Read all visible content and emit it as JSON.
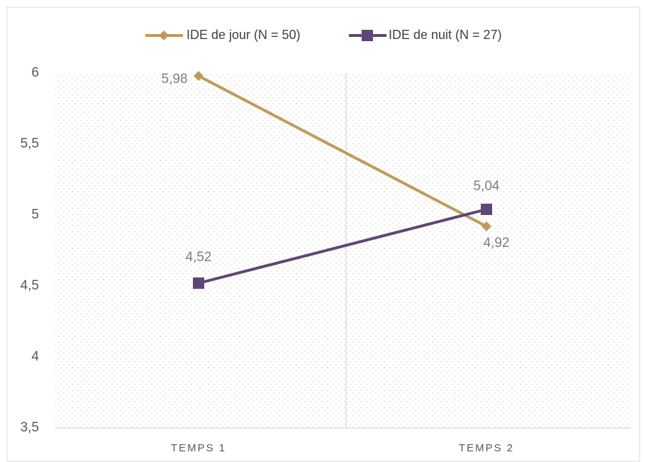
{
  "chart_data": {
    "type": "line",
    "categories": [
      "TEMPS 1",
      "TEMPS 2"
    ],
    "series": [
      {
        "name": "IDE de jour (N = 50)",
        "color": "#c09a5b",
        "marker": "diamond",
        "values": [
          5.98,
          4.92
        ],
        "value_labels": [
          "5,98",
          "4,92"
        ]
      },
      {
        "name": "IDE de nuit (N = 27)",
        "color": "#5e4678",
        "marker": "square",
        "values": [
          4.52,
          5.04
        ],
        "value_labels": [
          "4,52",
          "5,04"
        ]
      }
    ],
    "ylim": [
      3.5,
      6
    ],
    "yticks": [
      {
        "value": 3.5,
        "label": "3,5"
      },
      4,
      {
        "value": 4.5,
        "label": "4,5"
      },
      5,
      {
        "value": 5.5,
        "label": "5,5"
      },
      6
    ],
    "legend": "top"
  }
}
